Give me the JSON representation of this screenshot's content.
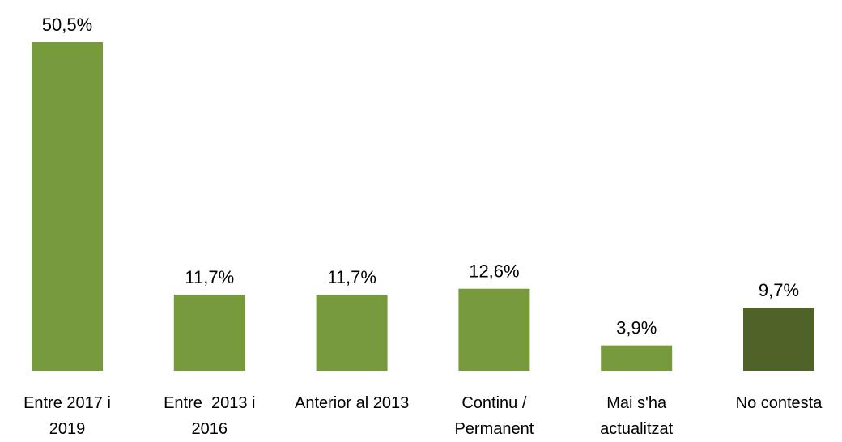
{
  "chart_data": {
    "type": "bar",
    "categories": [
      "Entre 2017 i 2019",
      "Entre  2013 i 2016",
      "Anterior al 2013",
      "Continu / Permanent",
      "Mai s'ha actualitzat",
      "No contesta"
    ],
    "values": [
      50.5,
      11.7,
      11.7,
      12.6,
      3.9,
      9.7
    ],
    "value_labels": [
      "50,5%",
      "11,7%",
      "11,7%",
      "12,6%",
      "3,9%",
      "9,7%"
    ],
    "colors": [
      "#779a3d",
      "#779a3d",
      "#779a3d",
      "#779a3d",
      "#779a3d",
      "#4f6228"
    ]
  }
}
